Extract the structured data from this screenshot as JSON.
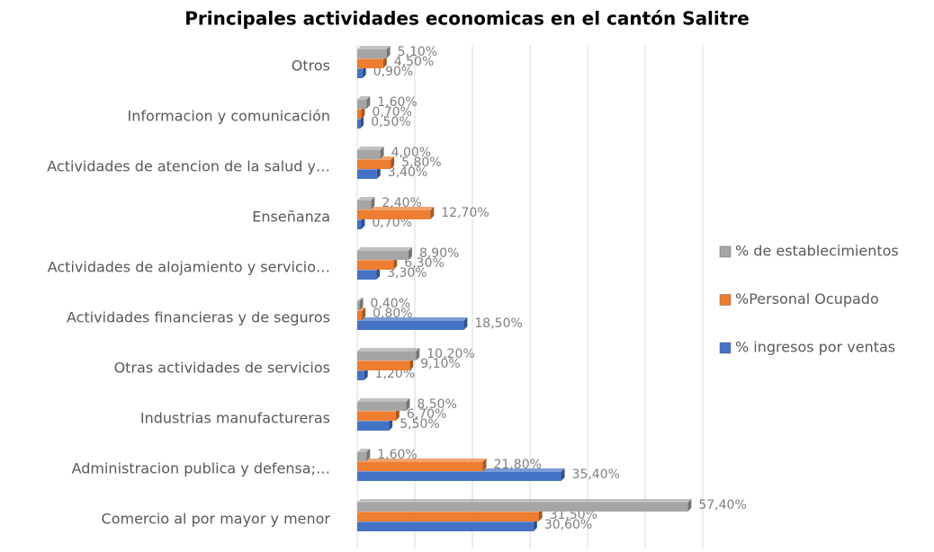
{
  "chart_data": {
    "type": "bar",
    "orientation": "horizontal",
    "title": "Principales actividades economicas en el cantón Salitre",
    "categories": [
      "Comercio al por mayor y menor",
      "Administracion publica y defensa;…",
      "Industrias manufactureras",
      "Otras actividades de servicios",
      "Actividades financieras y de seguros",
      "Actividades de alojamiento y servicio…",
      "Enseñanza",
      "Actividades de atencion de la salud y…",
      "Informacion y comunicación",
      "Otros"
    ],
    "series": [
      {
        "name": "% ingresos por ventas",
        "color": "#4472c4",
        "values": [
          30.6,
          35.4,
          5.5,
          1.2,
          18.5,
          3.3,
          0.7,
          3.4,
          0.5,
          0.9
        ],
        "value_labels": [
          "30,60%",
          "35,40%",
          "5,50%",
          "1,20%",
          "18,50%",
          "3,30%",
          "0,70%",
          "3,40%",
          "0,50%",
          "0,90%"
        ]
      },
      {
        "name": "%Personal Ocupado",
        "color": "#ed7d31",
        "values": [
          31.5,
          21.8,
          6.7,
          9.1,
          0.8,
          6.3,
          12.7,
          5.8,
          0.7,
          4.5
        ],
        "value_labels": [
          "31,50%",
          "21,80%",
          "6,70%",
          "9,10%",
          "0,80%",
          "6,30%",
          "12,70%",
          "5,80%",
          "0,70%",
          "4,50%"
        ]
      },
      {
        "name": "% de establecimientos",
        "color": "#a5a5a5",
        "values": [
          57.4,
          1.6,
          8.5,
          10.2,
          0.4,
          8.9,
          2.4,
          4.0,
          1.6,
          5.1
        ],
        "value_labels": [
          "57,40%",
          "1,60%",
          "8,50%",
          "10,20%",
          "0,40%",
          "8,90%",
          "2,40%",
          "4,00%",
          "1,60%",
          "5,10%"
        ]
      }
    ],
    "xlim": [
      0,
      60
    ],
    "xticks": [
      0,
      10,
      20,
      30,
      40,
      50,
      60
    ],
    "grid": true,
    "legend": "right"
  }
}
